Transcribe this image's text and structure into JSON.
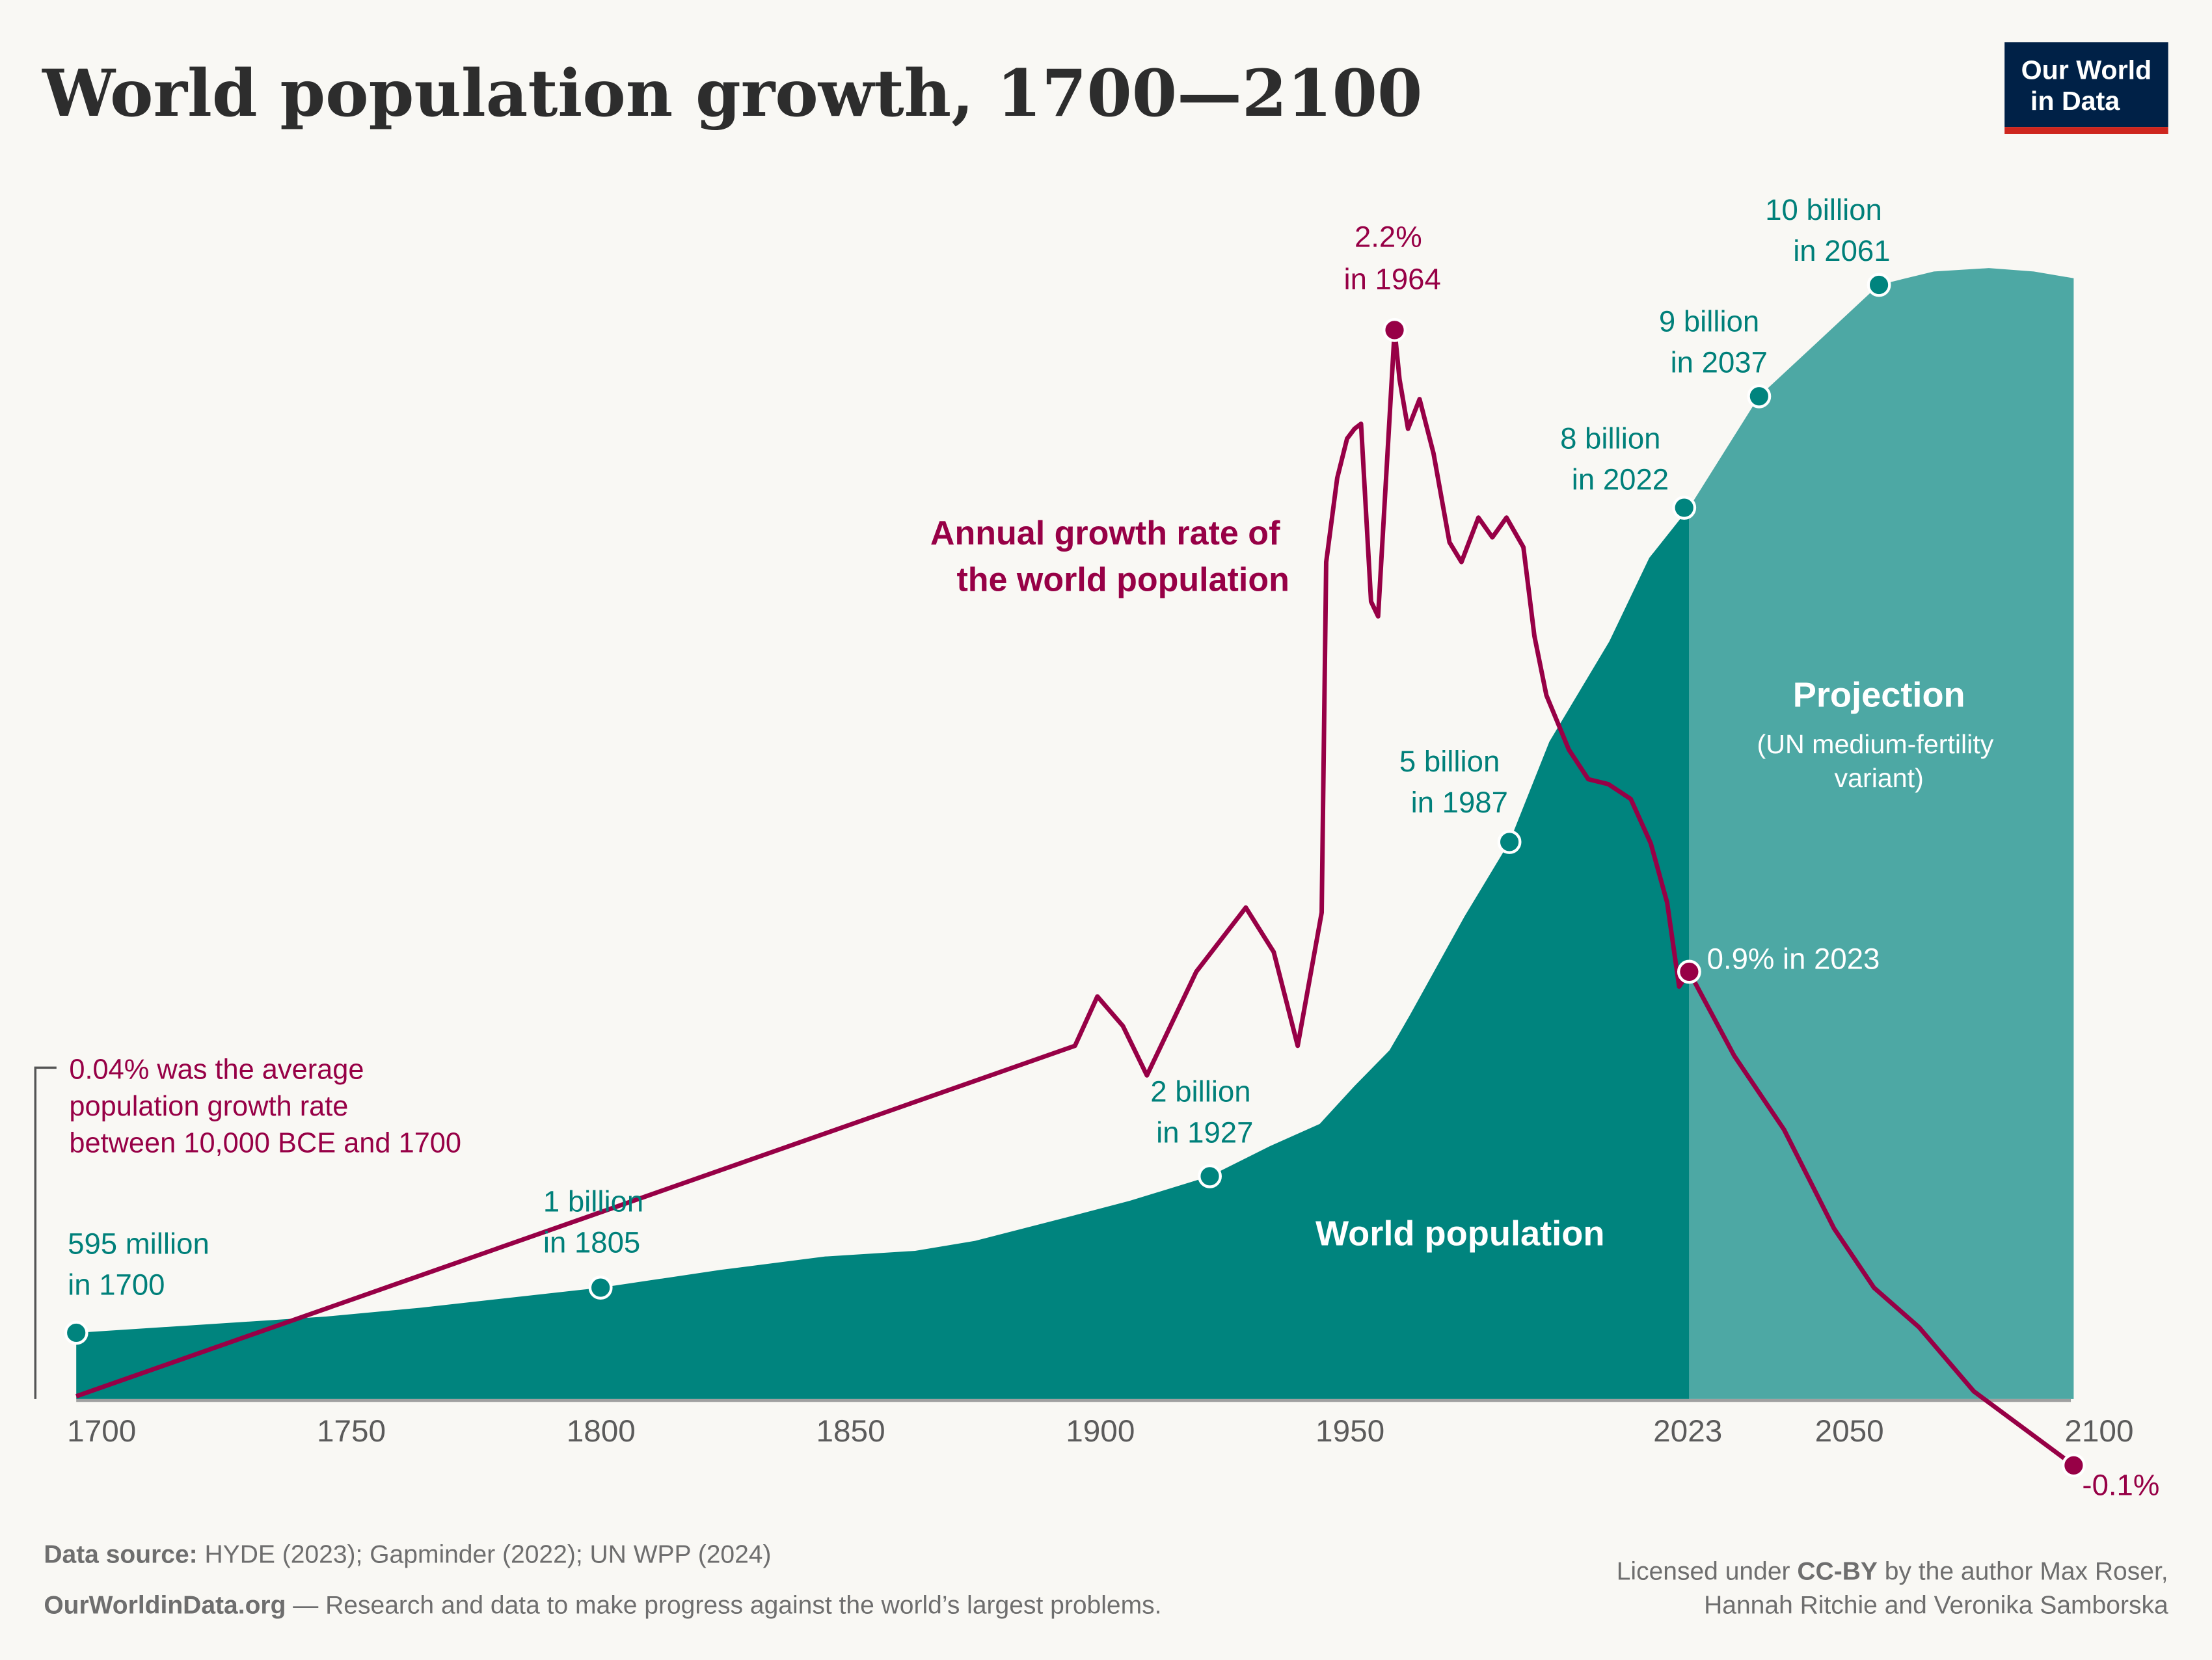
{
  "title": "World population growth, 1700—2100",
  "logo": {
    "line1": "Our World",
    "line2": "in Data",
    "bg": "#002147",
    "accent": "#ce261e"
  },
  "chart_data": [
    {
      "type": "area",
      "series_name": "World population",
      "unit": "billion",
      "color_historical": "#00847e",
      "color_projection": "#4da8a4",
      "projection_start": 2023,
      "projection_label": "Projection",
      "projection_note": [
        "(UN medium-fertility",
        "variant)"
      ],
      "x": [
        1700,
        1750,
        1769,
        1805,
        1829,
        1850,
        1868,
        1880,
        1900,
        1911,
        1927,
        1939,
        1949,
        1956,
        1963,
        1967,
        1978,
        1987,
        1995,
        2007,
        2015,
        2023,
        2037,
        2049,
        2061,
        2072,
        2083,
        2092,
        2100
      ],
      "y": [
        0.595,
        0.74,
        0.82,
        1.0,
        1.16,
        1.28,
        1.33,
        1.42,
        1.65,
        1.78,
        2.0,
        2.27,
        2.47,
        2.81,
        3.13,
        3.44,
        4.33,
        5.0,
        5.9,
        6.8,
        7.55,
        8.0,
        9.0,
        9.5,
        10.0,
        10.12,
        10.15,
        10.12,
        10.06
      ],
      "milestones": [
        {
          "year": 1700,
          "value": 0.595,
          "lines": [
            "595 million",
            "in 1700"
          ]
        },
        {
          "year": 1805,
          "value": 1,
          "lines": [
            "1 billion",
            "in 1805"
          ]
        },
        {
          "year": 1927,
          "value": 2,
          "lines": [
            "2 billion",
            "in 1927"
          ]
        },
        {
          "year": 1987,
          "value": 5,
          "lines": [
            "5 billion",
            "in 1987"
          ]
        },
        {
          "year": 2022,
          "value": 8,
          "lines": [
            "8 billion",
            "in 2022"
          ]
        },
        {
          "year": 2037,
          "value": 9,
          "lines": [
            "9 billion",
            "in 2037"
          ]
        },
        {
          "year": 2061,
          "value": 10,
          "lines": [
            "10 billion",
            "in 2061"
          ]
        }
      ]
    },
    {
      "type": "line",
      "series_name": "Annual growth rate of the world population",
      "series_label_lines": [
        "Annual growth rate of",
        "the world population"
      ],
      "unit": "%",
      "color": "#970046",
      "x": [
        1700,
        1900,
        1904.5,
        1909.6,
        1914.4,
        1924.3,
        1934.2,
        1939.8,
        1944.6,
        1949.4,
        1950.3,
        1952.5,
        1954.5,
        1956,
        1957.3,
        1959.3,
        1960.7,
        1964,
        1965,
        1966.7,
        1969,
        1971.8,
        1975,
        1977.4,
        1980.8,
        1983.6,
        1986.4,
        1989.8,
        1992,
        1994.4,
        1998.9,
        2002.8,
        2006.8,
        2011.3,
        2015.3,
        2018.6,
        2021,
        2023,
        2032,
        2042,
        2052,
        2060,
        2069,
        2080,
        2100
      ],
      "y": [
        0.04,
        0.75,
        0.85,
        0.79,
        0.69,
        0.9,
        1.03,
        0.94,
        0.75,
        1.02,
        1.73,
        1.9,
        1.98,
        2.0,
        2.01,
        1.65,
        1.62,
        2.2,
        2.1,
        2.0,
        2.06,
        1.95,
        1.77,
        1.73,
        1.82,
        1.78,
        1.82,
        1.76,
        1.58,
        1.46,
        1.35,
        1.29,
        1.28,
        1.25,
        1.16,
        1.04,
        0.87,
        0.9,
        0.73,
        0.58,
        0.38,
        0.26,
        0.18,
        0.05,
        -0.1
      ],
      "annotations": {
        "peak": [
          "2.2%",
          "in 1964"
        ],
        "current": "0.9% in 2023",
        "end": "-0.1%",
        "historical_avg": [
          "0.04% was the average",
          "population growth rate",
          "between 10,000 BCE and 1700"
        ]
      }
    }
  ],
  "area_label": "World population",
  "x_ticks": [
    "1700",
    "1750",
    "1800",
    "1850",
    "1900",
    "1950",
    "2023",
    "2050",
    "2100"
  ],
  "footer": {
    "source_label": "Data source:",
    "source_text": "HYDE (2023); Gapminder (2022); UN WPP (2024)",
    "site": "OurWorldinData.org",
    "tagline": " — Research and data to make progress against the world’s largest problems.",
    "license_pre": "Licensed under ",
    "license": "CC-BY",
    "license_post": " by the author Max Roser,",
    "authors_line2": "Hannah Ritchie and Veronika Samborska"
  }
}
